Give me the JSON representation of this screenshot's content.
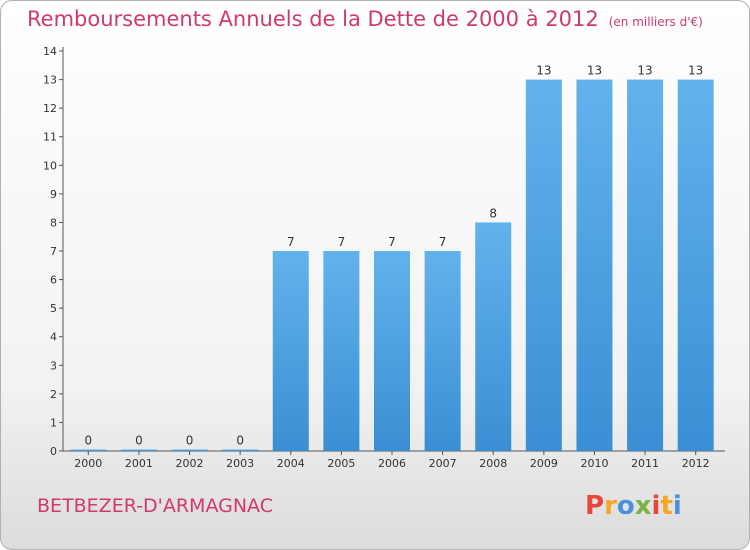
{
  "header": {
    "title": "Remboursements Annuels de la Dette de 2000 à 2012",
    "subtitle": "(en milliers d'€)"
  },
  "footer": {
    "commune": "BETBEZER-D'ARMAGNAC",
    "brand": [
      "P",
      "r",
      "o",
      "x",
      "i",
      "t",
      "i"
    ],
    "brand_colors": [
      "#e8463c",
      "#f5a623",
      "#4a90d9",
      "#7cb342",
      "#e8463c",
      "#f5a623",
      "#4a90d9"
    ]
  },
  "colors": {
    "bar": "#3a8fd4",
    "bar_light": "#62b2ec",
    "axis": "#555555",
    "grid": "#cccccc"
  },
  "chart_data": {
    "type": "bar",
    "title": "Remboursements Annuels de la Dette de 2000 à 2012",
    "subtitle": "(en milliers d'€)",
    "xlabel": "",
    "ylabel": "",
    "categories": [
      "2000",
      "2001",
      "2002",
      "2003",
      "2004",
      "2005",
      "2006",
      "2007",
      "2008",
      "2009",
      "2010",
      "2011",
      "2012"
    ],
    "values": [
      0,
      0,
      0,
      0,
      7,
      7,
      7,
      7,
      8,
      13,
      13,
      13,
      13
    ],
    "value_labels": [
      "0",
      "0",
      "0",
      "0",
      "7",
      "7",
      "7",
      "7",
      "8",
      "13",
      "13",
      "13",
      "13"
    ],
    "yticks": [
      "0",
      "1",
      "2",
      "3",
      "4",
      "5",
      "6",
      "7",
      "8",
      "9",
      "10",
      "11",
      "12",
      "13",
      "14"
    ],
    "ylim": [
      0,
      14
    ],
    "grid": false,
    "legend": "none"
  }
}
